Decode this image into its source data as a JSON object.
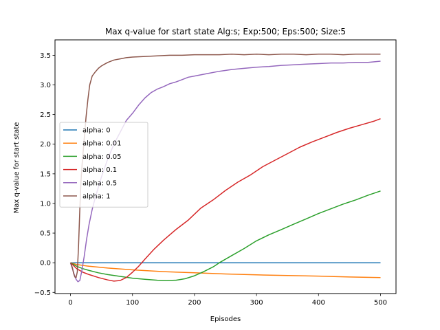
{
  "chart_data": {
    "type": "line",
    "title": "Max q-value for start state Alg:s; Exp:500; Eps:500; Size:5",
    "xlabel": "Episodes",
    "ylabel": "Max q-value for start state",
    "xlim": [
      -25,
      525
    ],
    "ylim": [
      -0.52,
      3.76
    ],
    "xticks": [
      0,
      100,
      200,
      300,
      400,
      500
    ],
    "xtick_labels": [
      "0",
      "100",
      "200",
      "300",
      "400",
      "500"
    ],
    "yticks": [
      -0.5,
      0.0,
      0.5,
      1.0,
      1.5,
      2.0,
      2.5,
      3.0,
      3.5
    ],
    "ytick_labels": [
      "−0.5",
      "0.0",
      "0.5",
      "1.0",
      "1.5",
      "2.0",
      "2.5",
      "3.0",
      "3.5"
    ],
    "grid": false,
    "legend_position": "center-left",
    "series": [
      {
        "name": "alpha: 0",
        "color": "#1f77b4",
        "points": [
          [
            0,
            0.0
          ],
          [
            500,
            0.0
          ]
        ]
      },
      {
        "name": "alpha: 0.01",
        "color": "#ff7f0e",
        "points": [
          [
            0,
            0.0
          ],
          [
            10,
            -0.03
          ],
          [
            30,
            -0.06
          ],
          [
            60,
            -0.09
          ],
          [
            100,
            -0.12
          ],
          [
            150,
            -0.15
          ],
          [
            200,
            -0.17
          ],
          [
            250,
            -0.19
          ],
          [
            300,
            -0.205
          ],
          [
            350,
            -0.215
          ],
          [
            400,
            -0.225
          ],
          [
            450,
            -0.24
          ],
          [
            500,
            -0.25
          ]
        ]
      },
      {
        "name": "alpha: 0.05",
        "color": "#2ca02c",
        "points": [
          [
            0,
            0.0
          ],
          [
            5,
            -0.03
          ],
          [
            10,
            -0.06
          ],
          [
            20,
            -0.1
          ],
          [
            30,
            -0.13
          ],
          [
            45,
            -0.17
          ],
          [
            60,
            -0.2
          ],
          [
            80,
            -0.23
          ],
          [
            100,
            -0.26
          ],
          [
            120,
            -0.28
          ],
          [
            140,
            -0.295
          ],
          [
            155,
            -0.3
          ],
          [
            170,
            -0.295
          ],
          [
            185,
            -0.27
          ],
          [
            200,
            -0.22
          ],
          [
            215,
            -0.15
          ],
          [
            230,
            -0.07
          ],
          [
            240,
            0.0
          ],
          [
            260,
            0.12
          ],
          [
            280,
            0.24
          ],
          [
            300,
            0.37
          ],
          [
            320,
            0.47
          ],
          [
            340,
            0.56
          ],
          [
            360,
            0.65
          ],
          [
            380,
            0.74
          ],
          [
            400,
            0.83
          ],
          [
            420,
            0.91
          ],
          [
            440,
            0.99
          ],
          [
            460,
            1.06
          ],
          [
            480,
            1.14
          ],
          [
            500,
            1.21
          ]
        ]
      },
      {
        "name": "alpha: 0.1",
        "color": "#d62728",
        "points": [
          [
            0,
            0.0
          ],
          [
            5,
            -0.05
          ],
          [
            10,
            -0.1
          ],
          [
            20,
            -0.16
          ],
          [
            30,
            -0.2
          ],
          [
            45,
            -0.25
          ],
          [
            60,
            -0.29
          ],
          [
            70,
            -0.31
          ],
          [
            80,
            -0.3
          ],
          [
            90,
            -0.25
          ],
          [
            100,
            -0.16
          ],
          [
            110,
            -0.06
          ],
          [
            120,
            0.06
          ],
          [
            135,
            0.23
          ],
          [
            150,
            0.38
          ],
          [
            170,
            0.56
          ],
          [
            190,
            0.72
          ],
          [
            210,
            0.92
          ],
          [
            230,
            1.06
          ],
          [
            250,
            1.22
          ],
          [
            270,
            1.36
          ],
          [
            290,
            1.48
          ],
          [
            310,
            1.62
          ],
          [
            330,
            1.73
          ],
          [
            350,
            1.84
          ],
          [
            370,
            1.95
          ],
          [
            390,
            2.04
          ],
          [
            410,
            2.12
          ],
          [
            430,
            2.2
          ],
          [
            450,
            2.27
          ],
          [
            470,
            2.33
          ],
          [
            490,
            2.39
          ],
          [
            500,
            2.43
          ]
        ]
      },
      {
        "name": "alpha: 0.5",
        "color": "#9467bd",
        "points": [
          [
            0,
            0.0
          ],
          [
            3,
            -0.1
          ],
          [
            6,
            -0.2
          ],
          [
            9,
            -0.28
          ],
          [
            12,
            -0.32
          ],
          [
            15,
            -0.3
          ],
          [
            18,
            -0.15
          ],
          [
            22,
            0.1
          ],
          [
            26,
            0.4
          ],
          [
            30,
            0.65
          ],
          [
            35,
            0.9
          ],
          [
            40,
            1.1
          ],
          [
            50,
            1.45
          ],
          [
            60,
            1.75
          ],
          [
            70,
            2.0
          ],
          [
            80,
            2.2
          ],
          [
            90,
            2.4
          ],
          [
            100,
            2.52
          ],
          [
            110,
            2.66
          ],
          [
            120,
            2.78
          ],
          [
            130,
            2.87
          ],
          [
            140,
            2.93
          ],
          [
            150,
            2.97
          ],
          [
            160,
            3.02
          ],
          [
            170,
            3.05
          ],
          [
            180,
            3.09
          ],
          [
            190,
            3.13
          ],
          [
            200,
            3.15
          ],
          [
            220,
            3.19
          ],
          [
            240,
            3.23
          ],
          [
            260,
            3.26
          ],
          [
            280,
            3.28
          ],
          [
            300,
            3.3
          ],
          [
            320,
            3.31
          ],
          [
            340,
            3.33
          ],
          [
            360,
            3.34
          ],
          [
            380,
            3.35
          ],
          [
            400,
            3.36
          ],
          [
            420,
            3.37
          ],
          [
            440,
            3.37
          ],
          [
            460,
            3.38
          ],
          [
            480,
            3.38
          ],
          [
            490,
            3.39
          ],
          [
            500,
            3.4
          ]
        ]
      },
      {
        "name": "alpha: 1",
        "color": "#8c564b",
        "points": [
          [
            0,
            0.0
          ],
          [
            3,
            -0.08
          ],
          [
            5,
            -0.18
          ],
          [
            7,
            -0.24
          ],
          [
            9,
            -0.25
          ],
          [
            11,
            -0.15
          ],
          [
            13,
            0.3
          ],
          [
            15,
            0.9
          ],
          [
            17,
            1.4
          ],
          [
            19,
            1.7
          ],
          [
            21,
            1.95
          ],
          [
            23,
            2.2
          ],
          [
            25,
            2.45
          ],
          [
            28,
            2.75
          ],
          [
            31,
            3.0
          ],
          [
            35,
            3.15
          ],
          [
            40,
            3.22
          ],
          [
            45,
            3.28
          ],
          [
            50,
            3.32
          ],
          [
            55,
            3.35
          ],
          [
            60,
            3.38
          ],
          [
            70,
            3.42
          ],
          [
            80,
            3.44
          ],
          [
            90,
            3.46
          ],
          [
            100,
            3.47
          ],
          [
            120,
            3.48
          ],
          [
            140,
            3.49
          ],
          [
            160,
            3.5
          ],
          [
            180,
            3.5
          ],
          [
            200,
            3.51
          ],
          [
            220,
            3.51
          ],
          [
            240,
            3.51
          ],
          [
            260,
            3.52
          ],
          [
            280,
            3.51
          ],
          [
            300,
            3.52
          ],
          [
            320,
            3.51
          ],
          [
            340,
            3.52
          ],
          [
            360,
            3.52
          ],
          [
            380,
            3.51
          ],
          [
            400,
            3.52
          ],
          [
            420,
            3.52
          ],
          [
            440,
            3.51
          ],
          [
            460,
            3.52
          ],
          [
            480,
            3.52
          ],
          [
            500,
            3.52
          ]
        ]
      }
    ]
  }
}
